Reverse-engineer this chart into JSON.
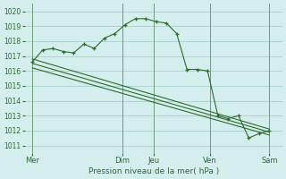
{
  "title": "",
  "xlabel": "Pression niveau de la mer( hPa )",
  "background_color": "#d4eeed",
  "grid_color": "#aacfcc",
  "line_color": "#2d6a2d",
  "ylim": [
    1010.5,
    1020.5
  ],
  "yticks": [
    1011,
    1012,
    1013,
    1014,
    1015,
    1016,
    1017,
    1018,
    1019,
    1020
  ],
  "xlim": [
    0,
    10.0
  ],
  "day_labels": [
    "Mer",
    "Dim",
    "Jeu",
    "Ven",
    "Sam"
  ],
  "day_positions": [
    0.3,
    3.8,
    5.0,
    7.2,
    9.5
  ],
  "vline_positions": [
    0.3,
    3.8,
    5.0,
    7.2,
    9.5
  ],
  "series": [
    {
      "x": [
        0.3,
        0.7,
        1.1,
        1.5,
        1.9,
        2.3,
        2.7,
        3.1,
        3.5,
        3.9,
        4.3,
        4.7,
        5.1,
        5.5,
        5.9,
        6.3,
        6.7,
        7.1,
        7.5,
        7.9,
        8.3,
        8.7,
        9.1,
        9.5
      ],
      "y": [
        1016.6,
        1017.4,
        1017.5,
        1017.3,
        1017.2,
        1017.8,
        1017.5,
        1018.2,
        1018.5,
        1019.1,
        1019.5,
        1019.5,
        1019.3,
        1019.2,
        1018.5,
        1016.1,
        1016.1,
        1016.0,
        1013.0,
        1012.8,
        1013.0,
        1011.5,
        1011.8,
        1012.0
      ],
      "has_markers": true
    },
    {
      "x": [
        0.3,
        9.5
      ],
      "y": [
        1016.8,
        1012.1
      ],
      "has_markers": false
    },
    {
      "x": [
        0.3,
        9.5
      ],
      "y": [
        1016.5,
        1011.9
      ],
      "has_markers": false
    },
    {
      "x": [
        0.3,
        9.5
      ],
      "y": [
        1016.2,
        1011.7
      ],
      "has_markers": false
    }
  ]
}
